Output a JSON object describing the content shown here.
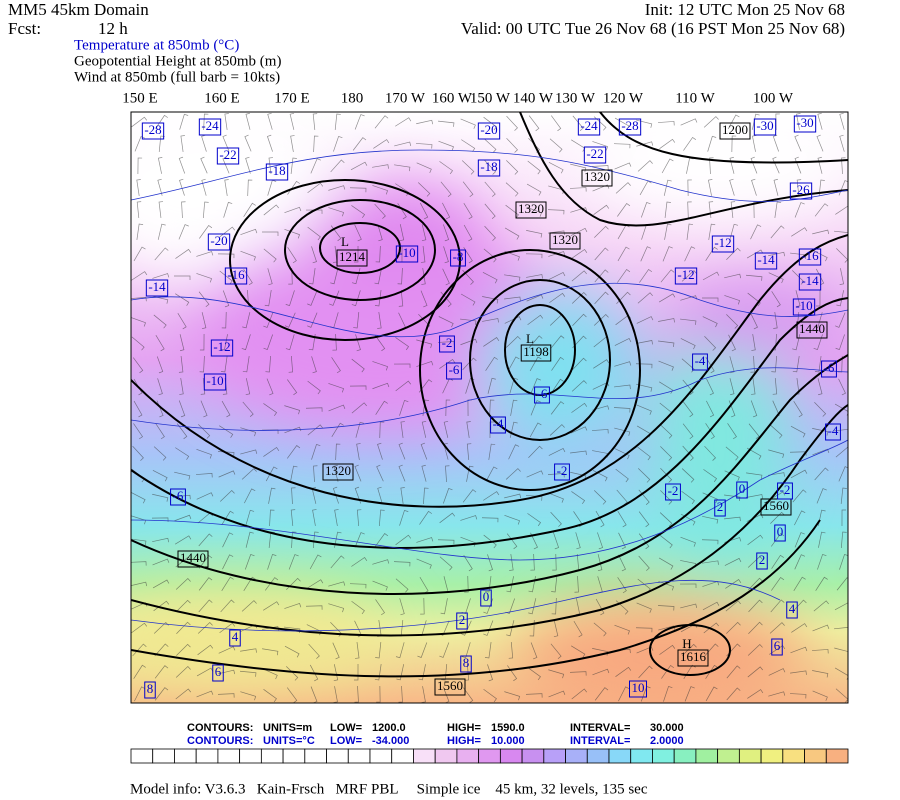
{
  "header": {
    "domain": "MM5 45km Domain",
    "fcst_label": "Fcst:",
    "fcst_value": "12 h",
    "init": "Init: 12 UTC Mon 25 Nov 68",
    "valid": "Valid: 00 UTC Tue 26 Nov 68 (16 PST Mon 25 Nov 68)"
  },
  "fields": [
    "Temperature at 850mb (°C)",
    "Geopotential Height at 850mb (m)",
    "Wind at 850mb (full barb = 10kts)"
  ],
  "longitudes": [
    "150 E",
    "160 E",
    "170 E",
    "180",
    "170 W",
    "160 W",
    "150 W",
    "140 W",
    "130 W",
    "120 W",
    "110 W",
    "100 W"
  ],
  "centers": [
    "L",
    "L",
    "H"
  ],
  "height_labels": [
    "1200",
    "1320",
    "1320",
    "1320",
    "1214",
    "1198",
    "1320",
    "1440",
    "1560",
    "1440",
    "1560",
    "1616"
  ],
  "temp_labels": [
    "-28",
    "-24",
    "-20",
    "-24",
    "-28",
    "-30",
    "-30",
    "-22",
    "-18",
    "-18",
    "-22",
    "-26",
    "-20",
    "-16",
    "-14",
    "-10",
    "-8",
    "-12",
    "-14",
    "-16",
    "-14",
    "-12",
    "-10",
    "-12",
    "-10",
    "-6",
    "-6",
    "-4",
    "-4",
    "-6",
    "-4",
    "-2",
    "-2",
    "0",
    "-2",
    "2",
    "0",
    "2",
    "-6",
    "0",
    "2",
    "4",
    "4",
    "6",
    "6",
    "8",
    "8",
    "10",
    "-2"
  ],
  "height_contours": [
    "CONTOURS:",
    "UNITS=m",
    "LOW=",
    "1200.0",
    "HIGH=",
    "1590.0",
    "INTERVAL=",
    "30.000"
  ],
  "temp_contours": [
    "CONTOURS:",
    "UNITS=°C",
    "LOW=",
    "-34.000",
    "HIGH=",
    "10.000",
    "INTERVAL=",
    "2.0000"
  ],
  "colorbar": [
    "#ffffff",
    "#ffffff",
    "#ffffff",
    "#ffffff",
    "#ffffff",
    "#ffffff",
    "#ffffff",
    "#ffffff",
    "#ffffff",
    "#ffffff",
    "#ffffff",
    "#ffffff",
    "#ffffff",
    "#f8e0f8",
    "#f0c8f0",
    "#e8b0f0",
    "#e098f0",
    "#d888f0",
    "#c890f0",
    "#b8a0f8",
    "#a8b0f8",
    "#98c0f8",
    "#88d8f8",
    "#80e8f0",
    "#80f0e0",
    "#88f0c0",
    "#a0f0a0",
    "#c0f090",
    "#e0f080",
    "#f0f080",
    "#f8e080",
    "#f8c880",
    "#f8b080"
  ],
  "footer": "Model info: V3.6.3   Kain-Frsch   MRF PBL     Simple ice    45 km, 32 levels, 135 sec"
}
